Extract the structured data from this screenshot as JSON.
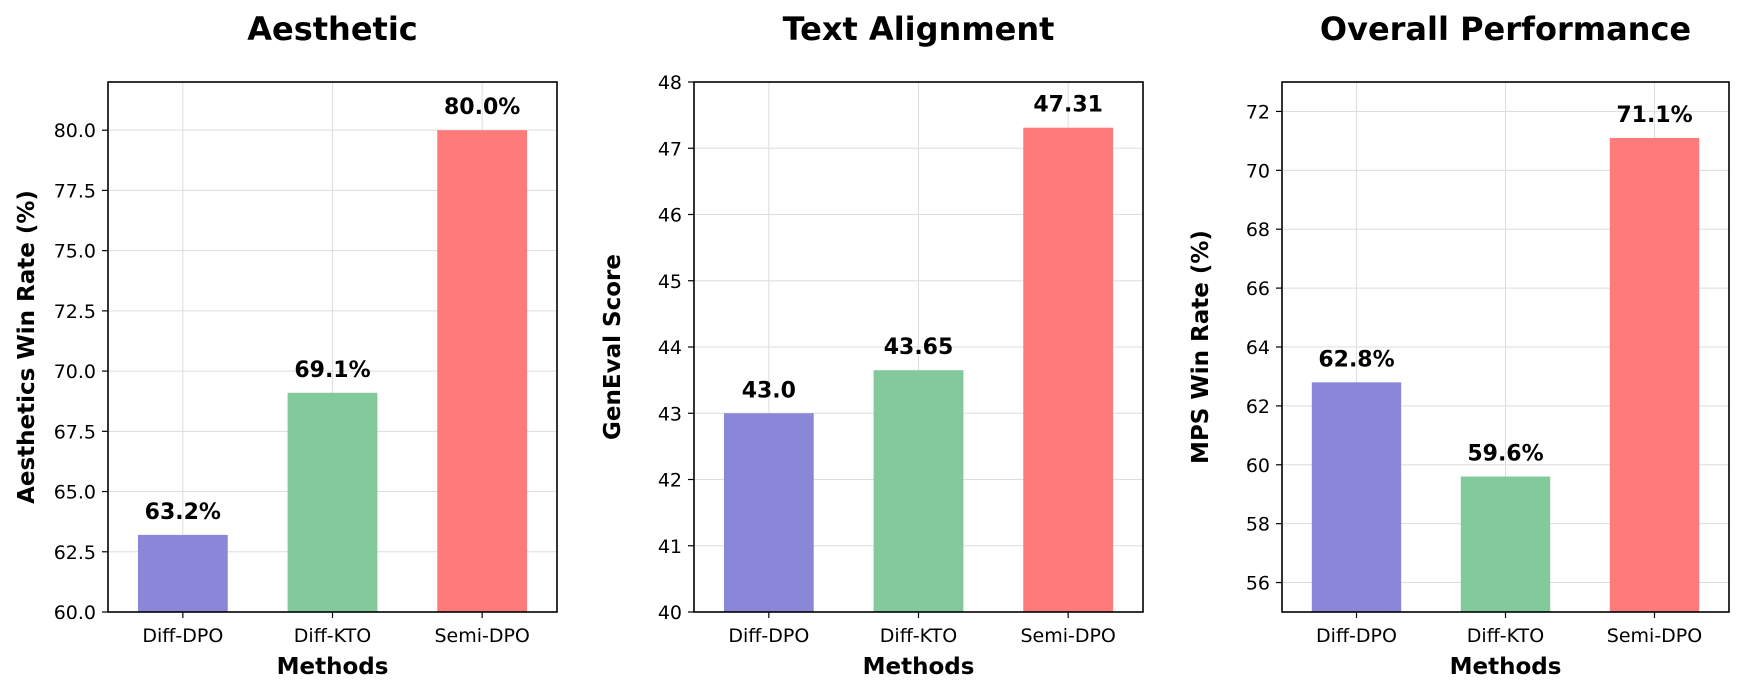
{
  "chart_data": [
    {
      "type": "bar",
      "title": "Aesthetic",
      "xlabel": "Methods",
      "ylabel": "Aesthetics Win Rate (%)",
      "categories": [
        "Diff-DPO",
        "Diff-KTO",
        "Semi-DPO"
      ],
      "values": [
        63.2,
        69.1,
        80.0
      ],
      "data_labels": [
        "63.2%",
        "69.1%",
        "80.0%"
      ],
      "colors": [
        "#8a87d8",
        "#82c99c",
        "#ff7b7b"
      ],
      "ylim": [
        60,
        82
      ],
      "yticks": [
        60.0,
        62.5,
        65.0,
        67.5,
        70.0,
        72.5,
        75.0,
        77.5,
        80.0
      ],
      "ytick_labels": [
        "60.0",
        "62.5",
        "65.0",
        "67.5",
        "70.0",
        "72.5",
        "75.0",
        "77.5",
        "80.0"
      ],
      "grid": true
    },
    {
      "type": "bar",
      "title": "Text Alignment",
      "xlabel": "Methods",
      "ylabel": "GenEval Score",
      "categories": [
        "Diff-DPO",
        "Diff-KTO",
        "Semi-DPO"
      ],
      "values": [
        43.0,
        43.65,
        47.31
      ],
      "data_labels": [
        "43.0",
        "43.65",
        "47.31"
      ],
      "colors": [
        "#8a87d8",
        "#82c99c",
        "#ff7b7b"
      ],
      "ylim": [
        40,
        48
      ],
      "yticks": [
        40,
        41,
        42,
        43,
        44,
        45,
        46,
        47,
        48
      ],
      "ytick_labels": [
        "40",
        "41",
        "42",
        "43",
        "44",
        "45",
        "46",
        "47",
        "48"
      ],
      "grid": true
    },
    {
      "type": "bar",
      "title": "Overall Performance",
      "xlabel": "Methods",
      "ylabel": "MPS Win Rate (%)",
      "categories": [
        "Diff-DPO",
        "Diff-KTO",
        "Semi-DPO"
      ],
      "values": [
        62.8,
        59.6,
        71.1
      ],
      "data_labels": [
        "62.8%",
        "59.6%",
        "71.1%"
      ],
      "colors": [
        "#8a87d8",
        "#82c99c",
        "#ff7b7b"
      ],
      "ylim": [
        55,
        73
      ],
      "yticks": [
        56,
        58,
        60,
        62,
        64,
        66,
        68,
        70,
        72
      ],
      "ytick_labels": [
        "56",
        "58",
        "60",
        "62",
        "64",
        "66",
        "68",
        "70",
        "72"
      ],
      "grid": true
    }
  ]
}
